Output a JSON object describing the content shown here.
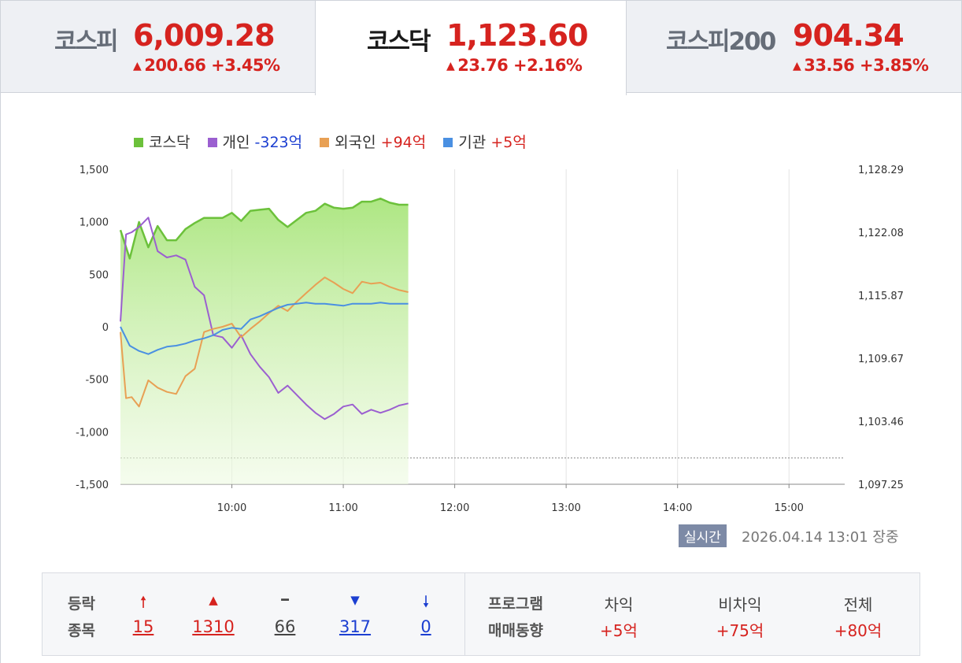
{
  "tabs": [
    {
      "name": "코스피",
      "value": "6,009.28",
      "change": "200.66 +3.45%"
    },
    {
      "name": "코스닥",
      "value": "1,123.60",
      "change": "23.76 +2.16%"
    },
    {
      "name": "코스피200",
      "value": "904.34",
      "change": "33.56 +3.85%"
    }
  ],
  "legend": [
    {
      "label": "코스닥",
      "value": "",
      "color": "#6cc13b"
    },
    {
      "label": "개인",
      "value": "-323억",
      "color": "#9b5fd0"
    },
    {
      "label": "외국인",
      "value": "+94억",
      "color": "#e8a054"
    },
    {
      "label": "기관",
      "value": "+5억",
      "color": "#4a90e2"
    }
  ],
  "chart_data": {
    "type": "line",
    "title": "",
    "x_ticks": [
      "10:00",
      "11:00",
      "12:00",
      "13:00",
      "14:00",
      "15:00"
    ],
    "y_left_ticks": [
      "1,500",
      "1,000",
      "500",
      "0",
      "-500",
      "-1,000",
      "-1,500"
    ],
    "y_left_range": [
      -1500,
      1500
    ],
    "y_right_ticks": [
      "1,128.29",
      "1,122.08",
      "1,115.87",
      "1,109.67",
      "1,103.46",
      "1,097.25"
    ],
    "y_right_range": [
      1097.25,
      1128.29
    ],
    "x_range": [
      "09:00",
      "15:30"
    ],
    "reference_line": 1099.84,
    "series": [
      {
        "name": "코스닥",
        "axis": "right",
        "color": "#6cc13b",
        "area": true,
        "x": [
          "09:00",
          "09:05",
          "09:10",
          "09:15",
          "09:20",
          "09:25",
          "09:30",
          "09:35",
          "09:40",
          "09:45",
          "09:50",
          "09:55",
          "10:00",
          "10:05",
          "10:10",
          "10:15",
          "10:20",
          "10:25",
          "10:30",
          "10:35",
          "10:40",
          "10:45",
          "10:50",
          "10:55",
          "11:00",
          "11:05",
          "11:10",
          "11:15",
          "11:20",
          "11:25",
          "11:30",
          "11:35"
        ],
        "values": [
          1122.3,
          1119.5,
          1123.1,
          1120.6,
          1122.7,
          1121.3,
          1121.3,
          1122.4,
          1123.0,
          1123.5,
          1123.5,
          1123.5,
          1124.0,
          1123.2,
          1124.2,
          1124.3,
          1124.4,
          1123.3,
          1122.6,
          1123.3,
          1124.0,
          1124.2,
          1124.9,
          1124.5,
          1124.4,
          1124.5,
          1125.1,
          1125.1,
          1125.4,
          1125.0,
          1124.8,
          1124.8
        ]
      },
      {
        "name": "개인",
        "axis": "left",
        "color": "#9b5fd0",
        "x": [
          "09:00",
          "09:03",
          "09:06",
          "09:10",
          "09:15",
          "09:20",
          "09:25",
          "09:30",
          "09:35",
          "09:40",
          "09:45",
          "09:50",
          "09:55",
          "10:00",
          "10:05",
          "10:10",
          "10:15",
          "10:20",
          "10:25",
          "10:30",
          "10:35",
          "10:40",
          "10:45",
          "10:50",
          "10:55",
          "11:00",
          "11:05",
          "11:10",
          "11:15",
          "11:20",
          "11:25",
          "11:30",
          "11:35"
        ],
        "values": [
          50,
          880,
          900,
          950,
          1040,
          720,
          660,
          680,
          640,
          380,
          300,
          -80,
          -100,
          -200,
          -80,
          -260,
          -380,
          -480,
          -630,
          -560,
          -650,
          -740,
          -820,
          -880,
          -830,
          -760,
          -740,
          -830,
          -790,
          -820,
          -790,
          -750,
          -730
        ]
      },
      {
        "name": "외국인",
        "axis": "left",
        "color": "#e8a054",
        "x": [
          "09:00",
          "09:03",
          "09:06",
          "09:10",
          "09:15",
          "09:20",
          "09:25",
          "09:30",
          "09:35",
          "09:40",
          "09:45",
          "09:50",
          "09:55",
          "10:00",
          "10:05",
          "10:10",
          "10:15",
          "10:20",
          "10:25",
          "10:30",
          "10:35",
          "10:40",
          "10:45",
          "10:50",
          "10:55",
          "11:00",
          "11:05",
          "11:10",
          "11:15",
          "11:20",
          "11:25",
          "11:30",
          "11:35"
        ],
        "values": [
          -50,
          -680,
          -670,
          -760,
          -510,
          -580,
          -620,
          -640,
          -470,
          -400,
          -50,
          -20,
          0,
          30,
          -100,
          -20,
          50,
          130,
          200,
          150,
          240,
          320,
          400,
          470,
          420,
          360,
          320,
          430,
          410,
          420,
          380,
          350,
          330
        ]
      },
      {
        "name": "기관",
        "axis": "left",
        "color": "#4a90e2",
        "x": [
          "09:00",
          "09:05",
          "09:10",
          "09:15",
          "09:20",
          "09:25",
          "09:30",
          "09:35",
          "09:40",
          "09:45",
          "09:50",
          "09:55",
          "10:00",
          "10:05",
          "10:10",
          "10:15",
          "10:20",
          "10:25",
          "10:30",
          "10:35",
          "10:40",
          "10:45",
          "10:50",
          "10:55",
          "11:00",
          "11:05",
          "11:10",
          "11:15",
          "11:20",
          "11:25",
          "11:30",
          "11:35"
        ],
        "values": [
          0,
          -180,
          -230,
          -260,
          -220,
          -190,
          -180,
          -160,
          -130,
          -110,
          -80,
          -30,
          -10,
          -20,
          70,
          100,
          140,
          180,
          210,
          220,
          230,
          220,
          220,
          210,
          200,
          220,
          220,
          220,
          230,
          220,
          220,
          220
        ]
      }
    ]
  },
  "status": {
    "badge": "실시간",
    "timestamp": "2026.04.14 13:01 장중"
  },
  "breadth": {
    "label1": "등락",
    "label2": "종목",
    "items": [
      {
        "symbol": "🠕",
        "count": "15",
        "tone": "red"
      },
      {
        "symbol": "▲",
        "count": "1310",
        "tone": "red"
      },
      {
        "symbol": "━",
        "count": "66",
        "tone": "gray"
      },
      {
        "symbol": "▼",
        "count": "317",
        "tone": "blue"
      },
      {
        "symbol": "🠗",
        "count": "0",
        "tone": "blue"
      }
    ]
  },
  "program": {
    "label1": "프로그램",
    "label2": "매매동향",
    "cols": [
      {
        "head": "차익",
        "value": "+5억"
      },
      {
        "head": "비차익",
        "value": "+75억"
      },
      {
        "head": "전체",
        "value": "+80억"
      }
    ]
  }
}
